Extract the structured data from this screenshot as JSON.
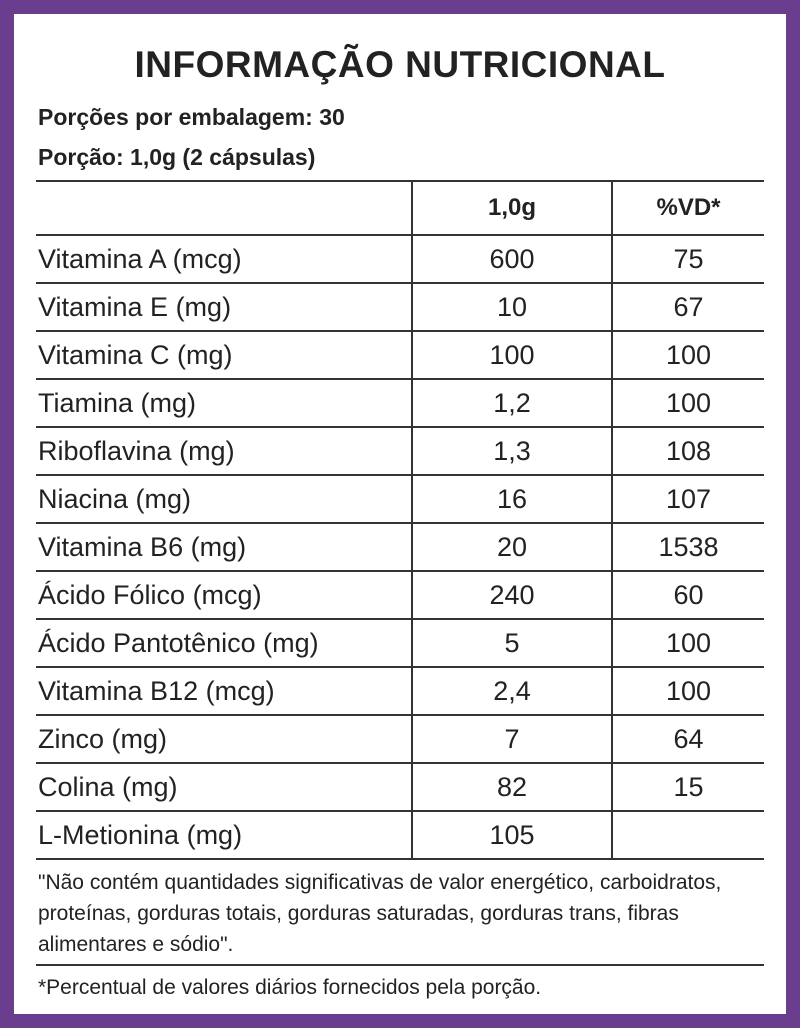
{
  "title": "INFORMAÇÃO NUTRICIONAL",
  "servings_per_package": "Porções por embalagem: 30",
  "serving_size": "Porção: 1,0g (2 cápsulas)",
  "table": {
    "headers": [
      "",
      "1,0g",
      "%VD*"
    ],
    "rows": [
      {
        "nutrient": "Vitamina A (mcg)",
        "amount": "600",
        "dv": "75"
      },
      {
        "nutrient": "Vitamina E (mg)",
        "amount": "10",
        "dv": "67"
      },
      {
        "nutrient": "Vitamina C (mg)",
        "amount": "100",
        "dv": "100"
      },
      {
        "nutrient": "Tiamina (mg)",
        "amount": "1,2",
        "dv": "100"
      },
      {
        "nutrient": "Riboflavina (mg)",
        "amount": "1,3",
        "dv": "108"
      },
      {
        "nutrient": "Niacina (mg)",
        "amount": "16",
        "dv": "107"
      },
      {
        "nutrient": "Vitamina B6 (mg)",
        "amount": "20",
        "dv": "1538"
      },
      {
        "nutrient": "Ácido Fólico (mcg)",
        "amount": "240",
        "dv": "60"
      },
      {
        "nutrient": "Ácido Pantotênico (mg)",
        "amount": "5",
        "dv": "100"
      },
      {
        "nutrient": "Vitamina B12 (mcg)",
        "amount": "2,4",
        "dv": "100"
      },
      {
        "nutrient": "Zinco (mg)",
        "amount": "7",
        "dv": "64"
      },
      {
        "nutrient": "Colina (mg)",
        "amount": "82",
        "dv": "15"
      },
      {
        "nutrient": "L-Metionina (mg)",
        "amount": "105",
        "dv": ""
      }
    ]
  },
  "footnote_1": "\"Não contém quantidades significativas de valor energético, carboidratos, proteínas, gorduras totais, gorduras saturadas, gorduras trans, fibras alimentares e sódio\".",
  "footnote_2": "*Percentual de valores diários fornecidos pela porção.",
  "colors": {
    "border": "#6a3d8f",
    "background": "#ffffff",
    "text": "#222222"
  }
}
